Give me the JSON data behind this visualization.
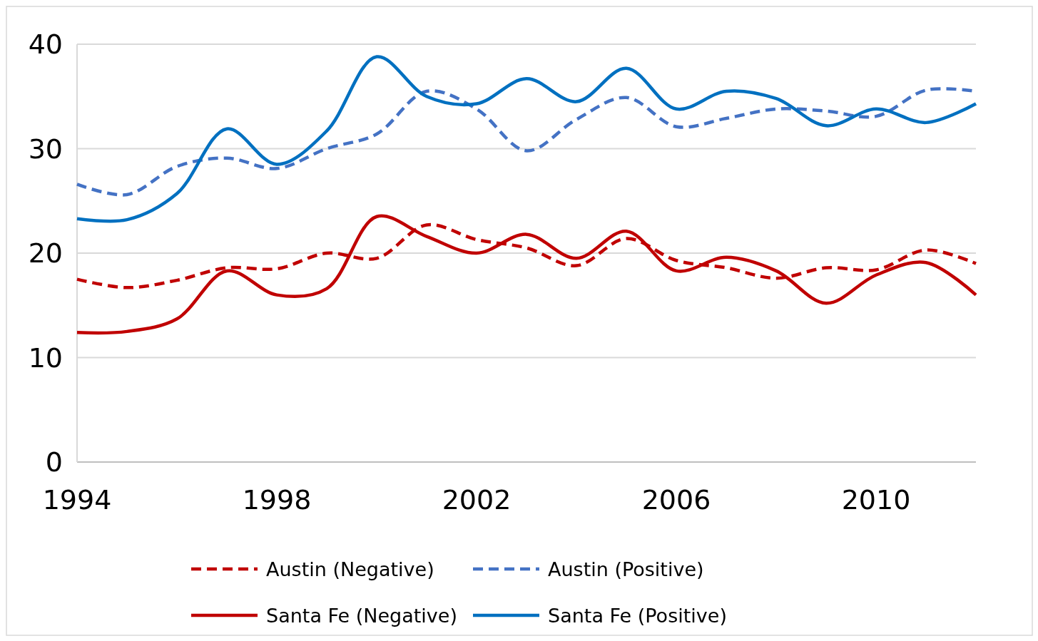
{
  "chart_data": {
    "type": "line",
    "x": [
      1994,
      1995,
      1996,
      1997,
      1998,
      1999,
      2000,
      2001,
      2002,
      2003,
      2004,
      2005,
      2006,
      2007,
      2008,
      2009,
      2010,
      2011,
      2012
    ],
    "series": [
      {
        "name": "Austin (Negative)",
        "color": "#c00000",
        "line_style": "dashed",
        "values": [
          17.5,
          16.7,
          17.4,
          18.6,
          18.5,
          20.0,
          19.5,
          22.7,
          21.3,
          20.5,
          18.8,
          21.4,
          19.3,
          18.6,
          17.6,
          18.6,
          18.4,
          20.3,
          19.0
        ]
      },
      {
        "name": "Austin (Positive)",
        "color": "#4472c4",
        "line_style": "dashed",
        "values": [
          26.6,
          25.6,
          28.3,
          29.1,
          28.1,
          30.0,
          31.4,
          35.5,
          33.8,
          29.8,
          32.8,
          34.9,
          32.1,
          32.9,
          33.8,
          33.6,
          33.1,
          35.6,
          35.5
        ]
      },
      {
        "name": "Santa Fe (Negative)",
        "color": "#c00000",
        "line_style": "solid",
        "values": [
          12.4,
          12.5,
          13.7,
          18.3,
          16.0,
          16.6,
          23.5,
          21.6,
          20.0,
          21.8,
          19.5,
          22.1,
          18.3,
          19.6,
          18.3,
          15.2,
          17.9,
          19.1,
          16.0
        ]
      },
      {
        "name": "Santa Fe (Positive)",
        "color": "#0070c0",
        "line_style": "solid",
        "values": [
          23.3,
          23.2,
          25.7,
          31.9,
          28.5,
          31.7,
          38.8,
          35.0,
          34.3,
          36.7,
          34.5,
          37.7,
          33.8,
          35.5,
          34.8,
          32.2,
          33.8,
          32.5,
          34.3
        ]
      }
    ],
    "xlim": [
      1994,
      2012
    ],
    "xticks": [
      1994,
      1998,
      2002,
      2006,
      2010
    ],
    "ylim": [
      0,
      40
    ],
    "yticks": [
      0,
      10,
      20,
      30,
      40
    ],
    "grid": "y",
    "legend": "bottom",
    "marker": "none"
  }
}
